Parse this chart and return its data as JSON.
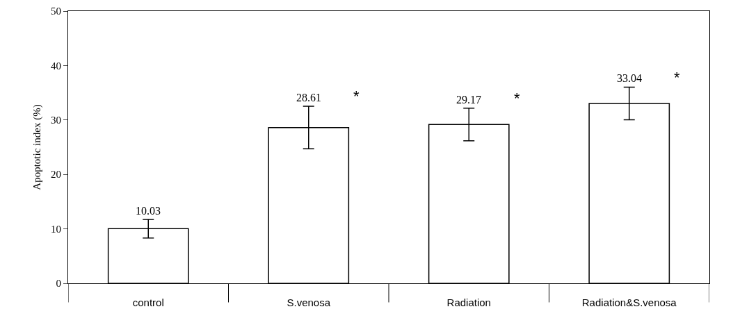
{
  "chart_data": {
    "type": "bar",
    "ylabel": "Apoptotic index (%)",
    "categories": [
      "control",
      "S.venosa",
      "Radiation",
      "Radiation&S.venosa"
    ],
    "values": [
      10.03,
      28.61,
      29.17,
      33.04
    ],
    "color": "#ffffff",
    "errors": [
      1.7,
      3.9,
      3.0,
      3.0
    ],
    "data_labels": true,
    "annotations": [
      {
        "text": "*",
        "x": "S.venosa",
        "y": 32.5
      },
      {
        "text": "*",
        "x": "Radiation",
        "y": 32.2
      },
      {
        "text": "*",
        "x": "Radiation&S.venosa",
        "y": 36
      }
    ],
    "ylim": [
      0,
      50
    ],
    "yticks": [
      0,
      10,
      20,
      30,
      40,
      50
    ],
    "grid": false
  }
}
